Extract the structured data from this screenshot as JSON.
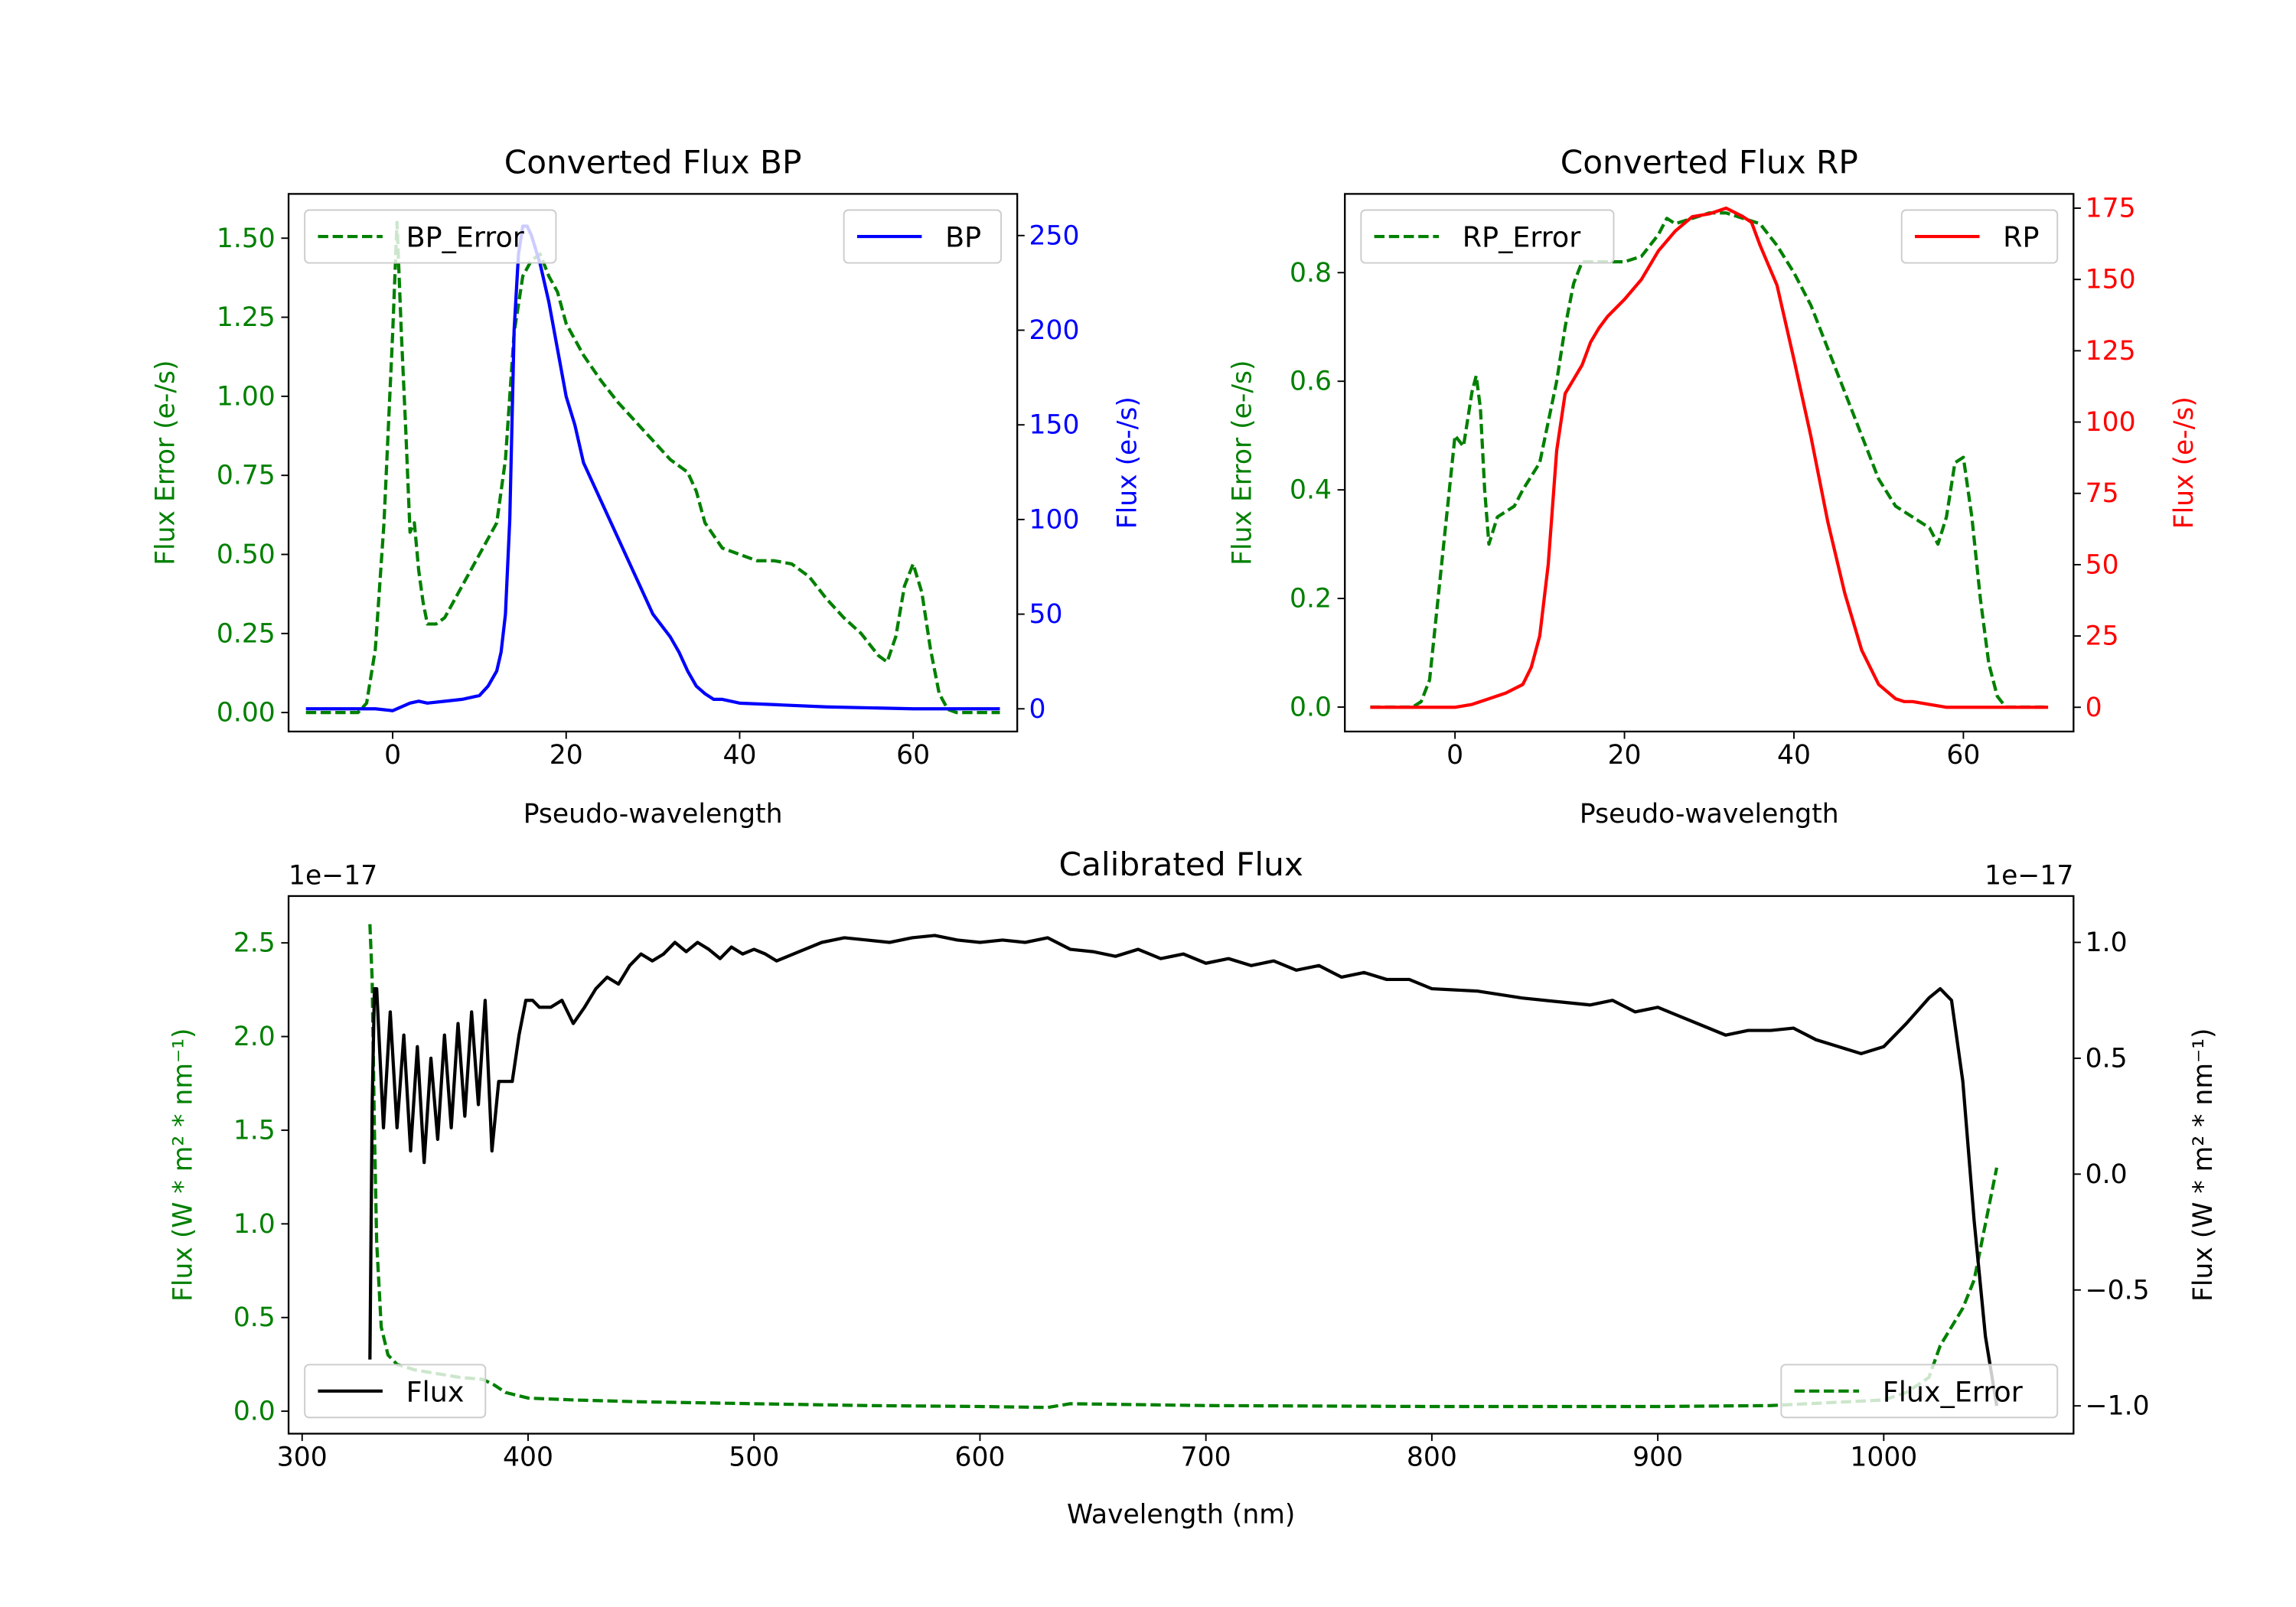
{
  "chart_data": [
    {
      "type": "line",
      "title": "Converted Flux BP",
      "xlabel": "Pseudo-wavelength",
      "ylabel": "Flux Error (e-/s)",
      "ylabel_right": "Flux (e-/s)",
      "xlim": [
        -12,
        72
      ],
      "ylim": [
        -0.06,
        1.64
      ],
      "ylim_right": [
        -12,
        272
      ],
      "x_ticks": [
        "0",
        "20",
        "40",
        "60"
      ],
      "y_ticks": [
        "0.00",
        "0.25",
        "0.50",
        "0.75",
        "1.00",
        "1.25",
        "1.50"
      ],
      "y_ticks_right": [
        "0",
        "50",
        "100",
        "150",
        "200",
        "250"
      ],
      "legend_left": {
        "label": "BP_Error",
        "position": "upper-left"
      },
      "legend_right": {
        "label": "BP",
        "position": "upper-right"
      },
      "series": [
        {
          "name": "BP_Error",
          "axis": "left",
          "color": "#008000",
          "style": "dashed",
          "x": [
            -10,
            -4,
            -3,
            -2,
            -1,
            0,
            0.5,
            1,
            1.5,
            2,
            2.5,
            3,
            3.5,
            4,
            5,
            6,
            7,
            8,
            10,
            12,
            13,
            14,
            15,
            16,
            17,
            18,
            19,
            20,
            22,
            24,
            26,
            28,
            30,
            32,
            34,
            35,
            36,
            38,
            40,
            42,
            44,
            46,
            48,
            50,
            52,
            54,
            56,
            57,
            58,
            59,
            60,
            61,
            62,
            63,
            64,
            65,
            70
          ],
          "y": [
            0.0,
            0.0,
            0.03,
            0.2,
            0.6,
            1.2,
            1.55,
            1.2,
            0.9,
            0.57,
            0.6,
            0.45,
            0.35,
            0.28,
            0.28,
            0.3,
            0.35,
            0.4,
            0.5,
            0.6,
            0.8,
            1.2,
            1.38,
            1.43,
            1.45,
            1.38,
            1.33,
            1.23,
            1.13,
            1.05,
            0.98,
            0.92,
            0.86,
            0.8,
            0.76,
            0.7,
            0.6,
            0.52,
            0.5,
            0.48,
            0.48,
            0.47,
            0.43,
            0.36,
            0.3,
            0.25,
            0.18,
            0.16,
            0.24,
            0.4,
            0.47,
            0.38,
            0.2,
            0.06,
            0.01,
            0.0,
            0.0
          ]
        },
        {
          "name": "BP",
          "axis": "right",
          "color": "#0000ff",
          "style": "solid",
          "x": [
            -10,
            -2,
            0,
            2,
            3,
            4,
            6,
            8,
            10,
            11,
            12,
            12.5,
            13,
            13.5,
            14,
            14.5,
            15,
            15.5,
            16,
            17,
            18,
            19,
            20,
            21,
            22,
            24,
            26,
            28,
            30,
            32,
            33,
            34,
            35,
            36,
            37,
            38,
            40,
            45,
            50,
            60,
            70
          ],
          "y": [
            0,
            0,
            -1,
            3,
            4,
            3,
            4,
            5,
            7,
            12,
            20,
            30,
            50,
            100,
            200,
            240,
            255,
            255,
            250,
            235,
            215,
            190,
            165,
            150,
            130,
            110,
            90,
            70,
            50,
            38,
            30,
            20,
            12,
            8,
            5,
            5,
            3,
            2,
            1,
            0,
            0
          ]
        }
      ]
    },
    {
      "type": "line",
      "title": "Converted Flux RP",
      "xlabel": "Pseudo-wavelength",
      "ylabel": "Flux Error (e-/s)",
      "ylabel_right": "Flux (e-/s)",
      "xlim": [
        -13,
        73
      ],
      "ylim": [
        -0.045,
        0.945
      ],
      "ylim_right": [
        -8.5,
        180
      ],
      "x_ticks": [
        "0",
        "20",
        "40",
        "60"
      ],
      "y_ticks": [
        "0.0",
        "0.2",
        "0.4",
        "0.6",
        "0.8"
      ],
      "y_ticks_right": [
        "0",
        "25",
        "50",
        "75",
        "100",
        "125",
        "150",
        "175"
      ],
      "legend_left": {
        "label": "RP_Error",
        "position": "upper-left"
      },
      "legend_right": {
        "label": "RP",
        "position": "upper-right"
      },
      "series": [
        {
          "name": "RP_Error",
          "axis": "left",
          "color": "#008000",
          "style": "dashed",
          "x": [
            -10,
            -5,
            -4,
            -3,
            -2,
            -1,
            0,
            0.5,
            1,
            2,
            2.5,
            3,
            3.5,
            4,
            5,
            7,
            8,
            10,
            12,
            13,
            14,
            15,
            16,
            18,
            20,
            22,
            24,
            25,
            26,
            28,
            30,
            32,
            34,
            36,
            38,
            40,
            42,
            44,
            46,
            48,
            50,
            52,
            54,
            56,
            57,
            58,
            59,
            60,
            61,
            62,
            63,
            64,
            65,
            70
          ],
          "y": [
            0.0,
            0.0,
            0.01,
            0.05,
            0.2,
            0.35,
            0.5,
            0.49,
            0.48,
            0.58,
            0.61,
            0.55,
            0.4,
            0.3,
            0.35,
            0.37,
            0.4,
            0.45,
            0.6,
            0.7,
            0.78,
            0.82,
            0.82,
            0.82,
            0.82,
            0.83,
            0.87,
            0.9,
            0.89,
            0.9,
            0.91,
            0.91,
            0.9,
            0.89,
            0.85,
            0.8,
            0.74,
            0.66,
            0.58,
            0.5,
            0.42,
            0.37,
            0.35,
            0.33,
            0.3,
            0.35,
            0.45,
            0.46,
            0.35,
            0.2,
            0.08,
            0.02,
            0.0,
            0.0
          ]
        },
        {
          "name": "RP",
          "axis": "right",
          "color": "#ff0000",
          "style": "solid",
          "x": [
            -10,
            0,
            2,
            4,
            6,
            8,
            9,
            10,
            11,
            12,
            13,
            14,
            15,
            16,
            17,
            18,
            20,
            22,
            24,
            26,
            28,
            30,
            32,
            34,
            35,
            36,
            37,
            38,
            40,
            42,
            44,
            46,
            48,
            50,
            52,
            53,
            54,
            56,
            58,
            60,
            65,
            70
          ],
          "y": [
            0,
            0,
            1,
            3,
            5,
            8,
            14,
            25,
            50,
            90,
            110,
            115,
            120,
            128,
            133,
            137,
            143,
            150,
            160,
            167,
            172,
            173,
            175,
            172,
            170,
            162,
            155,
            148,
            122,
            95,
            65,
            40,
            20,
            8,
            3,
            2,
            2,
            1,
            0,
            0,
            0,
            0
          ]
        }
      ]
    },
    {
      "type": "line",
      "title": "Calibrated Flux",
      "xlabel": "Wavelength (nm)",
      "ylabel": "Flux (W * m² * nm⁻¹)",
      "ylabel_right": "Flux (W * m² * nm⁻¹)",
      "offset_left": "1e−17",
      "offset_right": "1e−17",
      "xlim": [
        294,
        1084
      ],
      "ylim": [
        -0.12,
        2.75
      ],
      "ylim_right": [
        -1.12,
        1.2
      ],
      "x_ticks": [
        "300",
        "400",
        "500",
        "600",
        "700",
        "800",
        "900",
        "1000"
      ],
      "y_ticks": [
        "0.0",
        "0.5",
        "1.0",
        "1.5",
        "2.0",
        "2.5"
      ],
      "y_ticks_right": [
        "−1.0",
        "−0.5",
        "0.0",
        "0.5",
        "1.0"
      ],
      "legend_left": {
        "label": "Flux",
        "position": "lower-left"
      },
      "legend_right": {
        "label": "Flux_Error",
        "position": "lower-right"
      },
      "series": [
        {
          "name": "Flux_Error",
          "axis": "left",
          "color": "#008000",
          "style": "dashed",
          "x": [
            330,
            331,
            332,
            333,
            335,
            338,
            342,
            350,
            360,
            370,
            380,
            385,
            390,
            400,
            420,
            450,
            500,
            550,
            600,
            630,
            640,
            700,
            800,
            900,
            950,
            1000,
            1010,
            1020,
            1025,
            1030,
            1035,
            1040,
            1045,
            1050
          ],
          "y": [
            2.6,
            2.3,
            1.5,
            0.9,
            0.45,
            0.3,
            0.25,
            0.22,
            0.2,
            0.18,
            0.17,
            0.14,
            0.1,
            0.07,
            0.06,
            0.05,
            0.04,
            0.03,
            0.025,
            0.02,
            0.04,
            0.03,
            0.025,
            0.025,
            0.03,
            0.06,
            0.1,
            0.18,
            0.35,
            0.45,
            0.55,
            0.7,
            1.0,
            1.3
          ]
        },
        {
          "name": "Flux",
          "axis": "right",
          "color": "#000000",
          "style": "solid",
          "x": [
            330,
            331,
            332,
            333,
            336,
            339,
            342,
            345,
            348,
            351,
            354,
            357,
            360,
            363,
            366,
            369,
            372,
            375,
            378,
            381,
            384,
            387,
            390,
            393,
            396,
            399,
            402,
            405,
            410,
            415,
            420,
            425,
            430,
            435,
            440,
            445,
            450,
            455,
            460,
            465,
            470,
            475,
            480,
            485,
            490,
            495,
            500,
            505,
            510,
            520,
            530,
            540,
            550,
            560,
            570,
            580,
            590,
            600,
            610,
            620,
            630,
            640,
            650,
            660,
            670,
            680,
            690,
            700,
            710,
            720,
            730,
            740,
            750,
            760,
            770,
            780,
            790,
            800,
            820,
            840,
            860,
            870,
            880,
            890,
            900,
            910,
            920,
            930,
            940,
            950,
            960,
            970,
            980,
            990,
            1000,
            1010,
            1020,
            1025,
            1030,
            1035,
            1040,
            1045,
            1050
          ],
          "y": [
            -0.8,
            0.3,
            0.8,
            0.8,
            0.2,
            0.7,
            0.2,
            0.6,
            0.1,
            0.55,
            0.05,
            0.5,
            0.15,
            0.6,
            0.2,
            0.65,
            0.25,
            0.7,
            0.3,
            0.75,
            0.1,
            0.4,
            0.4,
            0.4,
            0.6,
            0.75,
            0.75,
            0.72,
            0.72,
            0.75,
            0.65,
            0.72,
            0.8,
            0.85,
            0.82,
            0.9,
            0.95,
            0.92,
            0.95,
            1.0,
            0.96,
            1.0,
            0.97,
            0.93,
            0.98,
            0.95,
            0.97,
            0.95,
            0.92,
            0.96,
            1.0,
            1.02,
            1.01,
            1.0,
            1.02,
            1.03,
            1.01,
            1.0,
            1.01,
            1.0,
            1.02,
            0.97,
            0.96,
            0.94,
            0.97,
            0.93,
            0.95,
            0.91,
            0.93,
            0.9,
            0.92,
            0.88,
            0.9,
            0.85,
            0.87,
            0.84,
            0.84,
            0.8,
            0.79,
            0.76,
            0.74,
            0.73,
            0.75,
            0.7,
            0.72,
            0.68,
            0.64,
            0.6,
            0.62,
            0.62,
            0.63,
            0.58,
            0.55,
            0.52,
            0.55,
            0.65,
            0.76,
            0.8,
            0.75,
            0.4,
            -0.2,
            -0.7,
            -1.0
          ]
        }
      ]
    }
  ]
}
